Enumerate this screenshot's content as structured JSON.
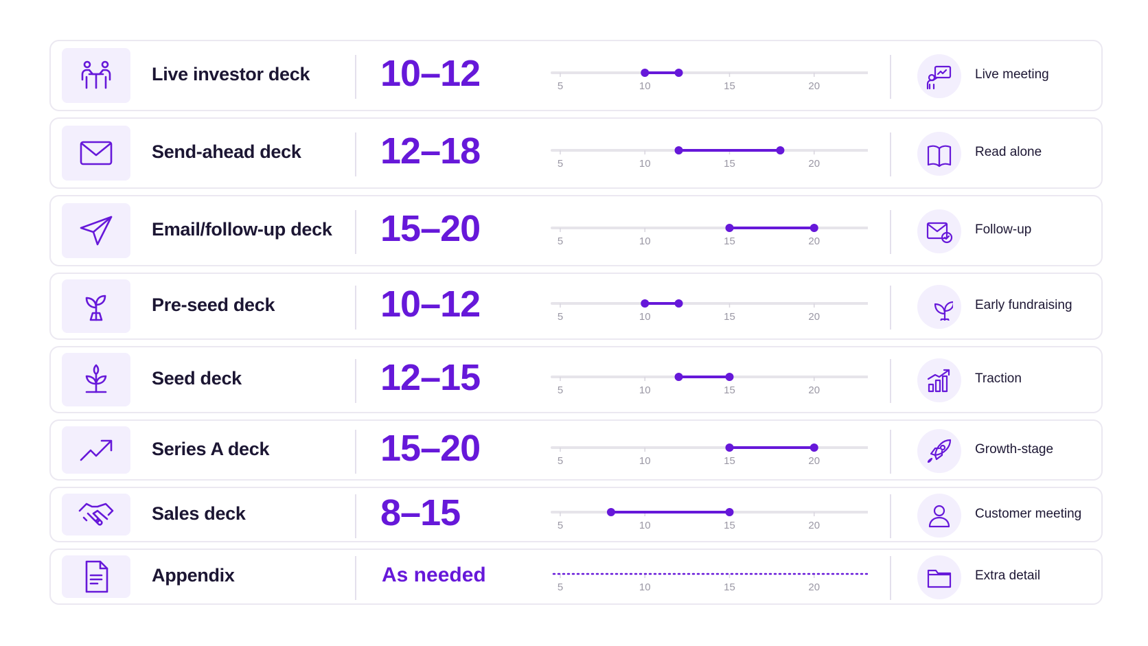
{
  "colors": {
    "accent": "#6618d9",
    "track": "#e6e4ea",
    "card_border": "#ebe8f1",
    "icon_bg": "#f3effd",
    "title": "#1c1633"
  },
  "chart_data": {
    "type": "range",
    "axis": {
      "ticks": [
        5,
        10,
        15,
        20,
        25
      ],
      "range": [
        5,
        25
      ]
    },
    "rows": [
      {
        "icon": "presentation-meeting-icon",
        "title": "Live investor deck",
        "range_label": "10–12",
        "min": 10,
        "max": 12,
        "use_icon": "presenter-board-icon",
        "use": "Live meeting"
      },
      {
        "icon": "envelope-icon",
        "title": "Send-ahead deck",
        "range_label": "12–18",
        "min": 12,
        "max": 18,
        "use_icon": "open-book-icon",
        "use": "Read alone"
      },
      {
        "icon": "paper-plane-icon",
        "title": "Email/follow-up deck",
        "range_label": "15–20",
        "min": 15,
        "max": 20,
        "use_icon": "envelope-check-icon",
        "use": "Follow-up"
      },
      {
        "icon": "sprout-icon",
        "title": "Pre-seed deck",
        "range_label": "10–12",
        "min": 10,
        "max": 12,
        "use_icon": "sprout-icon",
        "use": "Early fundraising"
      },
      {
        "icon": "seedling-plant-icon",
        "title": "Seed deck",
        "range_label": "12–15",
        "min": 12,
        "max": 15,
        "use_icon": "bar-chart-growth-icon",
        "use": "Traction"
      },
      {
        "icon": "trend-up-icon",
        "title": "Series A deck",
        "range_label": "15–20",
        "min": 15,
        "max": 20,
        "use_icon": "rocket-icon",
        "use": "Growth-stage"
      },
      {
        "icon": "handshake-icon",
        "title": "Sales deck",
        "range_label": "8–15",
        "min": 8,
        "max": 15,
        "use_icon": "person-icon",
        "use": "Customer meeting"
      },
      {
        "icon": "document-icon",
        "title": "Appendix",
        "range_label": "As needed",
        "min": 5,
        "max": 25,
        "open_ended": true,
        "use_icon": "folder-icon",
        "use": "Extra detail"
      }
    ]
  }
}
